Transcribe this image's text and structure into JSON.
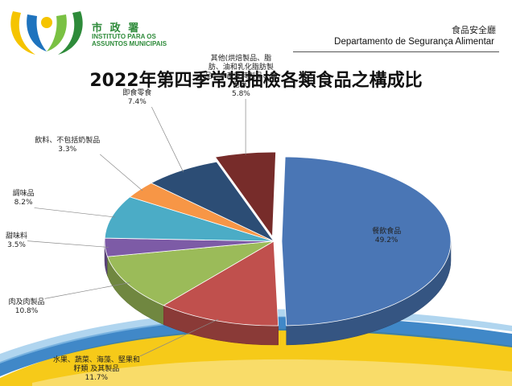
{
  "header": {
    "org_name_zh": "市 政 署",
    "org_name_pt_line1": "INSTITUTO PARA OS",
    "org_name_pt_line2": "ASSUNTOS MUNICIPAIS",
    "dept_zh": "食品安全廳",
    "dept_pt": "Departamento de Segurança Alimentar"
  },
  "colors": {
    "brand_green": "#2e8b3a",
    "accent_yellow": "#f5c400",
    "accent_blue": "#1e73be"
  },
  "chart_data": {
    "type": "pie",
    "title": "2022年第四季常規抽檢各類食品之構成比",
    "slices": [
      {
        "label": "餐飲食品",
        "value": 49.2,
        "value_text": "49.2%",
        "color": "#4a76b5"
      },
      {
        "label": "水果、蔬菜、海藻、堅果和\n籽類 及其製品",
        "value": 11.7,
        "value_text": "11.7%",
        "color": "#c0504d"
      },
      {
        "label": "肉及肉製品",
        "value": 10.8,
        "value_text": "10.8%",
        "color": "#9bbb59"
      },
      {
        "label": "甜味料",
        "value": 3.5,
        "value_text": "3.5%",
        "color": "#7d5ba6"
      },
      {
        "label": "調味品",
        "value": 8.2,
        "value_text": "8.2%",
        "color": "#4bacc6"
      },
      {
        "label": "飲料、不包括奶製品",
        "value": 3.3,
        "value_text": "3.3%",
        "color": "#f79646"
      },
      {
        "label": "即食零食",
        "value": 7.4,
        "value_text": "7.4%",
        "color": "#2c4d75"
      },
      {
        "label": "其他(烘焙製品、脂\n肪、油和乳化脂肪製\n品、水產及其製品、其\n他等)",
        "value": 5.8,
        "value_text": "5.8%",
        "color": "#772c2a"
      }
    ]
  }
}
